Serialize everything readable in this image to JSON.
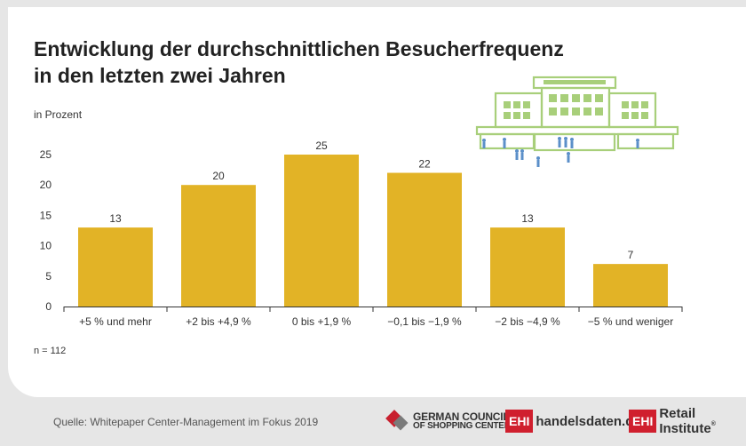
{
  "title_line1": "Entwicklung der durchschnittlichen Besucherfrequenz",
  "title_line2": "in den letzten zwei Jahren",
  "unit_label": "in Prozent",
  "note": "n = 112",
  "source": "Quelle: Whitepaper Center-Management im Fokus 2019",
  "logos": {
    "gcsc_line1": "GERMAN COUNCIL",
    "gcsc_line2": "OF SHOPPING CENTERS",
    "ehi_mark": "EHI",
    "ehi1_text": "handelsdaten.de",
    "ehi2_text": "Retail Institute",
    "registered": "®"
  },
  "colors": {
    "bar": "#e2b326",
    "axis": "#333333",
    "illustration": "#a8cf7a",
    "people": "#5b8fc9",
    "brand_red": "#d01f2e"
  },
  "chart_data": {
    "type": "bar",
    "categories": [
      "+5 % und mehr",
      "+2 bis +4,9 %",
      "0 bis +1,9 %",
      "−0,1 bis −1,9 %",
      "−2 bis −4,9 %",
      "−5 % und weniger"
    ],
    "values": [
      13,
      20,
      25,
      22,
      13,
      7
    ],
    "ylim": [
      0,
      25
    ],
    "yticks": [
      0,
      5,
      10,
      15,
      20,
      25
    ],
    "ylabel": "in Prozent",
    "xlabel": "",
    "title": "Entwicklung der durchschnittlichen Besucherfrequenz in den letzten zwei Jahren",
    "data_labels": true,
    "grid": false
  }
}
